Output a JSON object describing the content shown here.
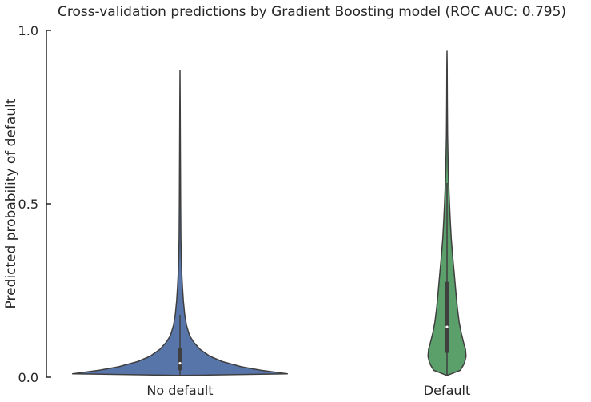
{
  "chart_data": {
    "type": "violin",
    "title": "Cross-validation predictions by Gradient Boosting model (ROC AUC: 0.795)",
    "xlabel": "",
    "ylabel": "Predicted probability of default",
    "ylim": [
      0.0,
      1.0
    ],
    "y_ticks": [
      {
        "value": 0.0,
        "label": "0.0"
      },
      {
        "value": 0.5,
        "label": "0.5"
      },
      {
        "value": 1.0,
        "label": "1.0"
      }
    ],
    "categories": [
      "No default",
      "Default"
    ],
    "grid": false,
    "series": [
      {
        "category": "No default",
        "color": "#5875aa",
        "min": 0.005,
        "max": 0.885,
        "q1": 0.02,
        "median": 0.04,
        "q3": 0.085,
        "whisker_low": 0.005,
        "whisker_high": 0.18,
        "density": [
          [
            0.005,
            0.0
          ],
          [
            0.01,
            0.96
          ],
          [
            0.02,
            0.72
          ],
          [
            0.03,
            0.55
          ],
          [
            0.045,
            0.38
          ],
          [
            0.06,
            0.27
          ],
          [
            0.08,
            0.18
          ],
          [
            0.1,
            0.125
          ],
          [
            0.12,
            0.085
          ],
          [
            0.15,
            0.058
          ],
          [
            0.18,
            0.042
          ],
          [
            0.22,
            0.03
          ],
          [
            0.26,
            0.022
          ],
          [
            0.3,
            0.016
          ],
          [
            0.35,
            0.011
          ],
          [
            0.4,
            0.008
          ],
          [
            0.5,
            0.006
          ],
          [
            0.6,
            0.004
          ],
          [
            0.7,
            0.003
          ],
          [
            0.8,
            0.0015
          ],
          [
            0.885,
            0.0
          ]
        ]
      },
      {
        "category": "Default",
        "color": "#5b9f6b",
        "min": 0.005,
        "max": 0.94,
        "q1": 0.07,
        "median": 0.145,
        "q3": 0.275,
        "whisker_low": 0.005,
        "whisker_high": 0.56,
        "density": [
          [
            0.005,
            0.0
          ],
          [
            0.02,
            0.12
          ],
          [
            0.04,
            0.155
          ],
          [
            0.06,
            0.17
          ],
          [
            0.08,
            0.165
          ],
          [
            0.1,
            0.148
          ],
          [
            0.13,
            0.125
          ],
          [
            0.16,
            0.108
          ],
          [
            0.2,
            0.092
          ],
          [
            0.25,
            0.078
          ],
          [
            0.3,
            0.064
          ],
          [
            0.35,
            0.05
          ],
          [
            0.4,
            0.038
          ],
          [
            0.45,
            0.029
          ],
          [
            0.5,
            0.022
          ],
          [
            0.55,
            0.016
          ],
          [
            0.6,
            0.011
          ],
          [
            0.65,
            0.008
          ],
          [
            0.7,
            0.005
          ],
          [
            0.8,
            0.003
          ],
          [
            0.9,
            0.0015
          ],
          [
            0.94,
            0.0
          ]
        ]
      }
    ]
  }
}
